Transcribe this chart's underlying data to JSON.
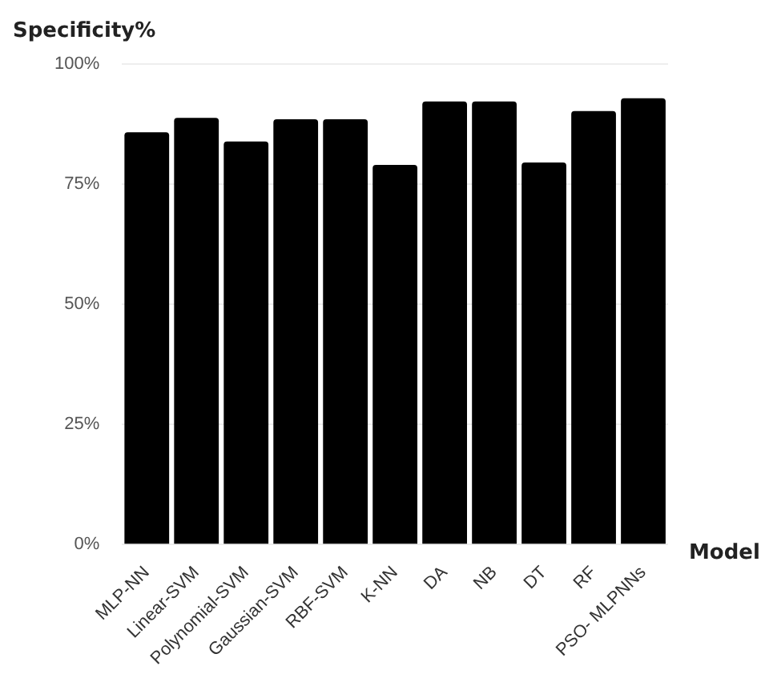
{
  "chart_data": {
    "type": "bar",
    "xlabel": "Model",
    "ylabel": "Specificity%",
    "categories": [
      "MLP-NN",
      "Linear-SVM",
      "Polynomial-SVM",
      "Gaussian-SVM",
      "RBF-SVM",
      "K-NN",
      "DA",
      "NB",
      "DT",
      "RF",
      "PSO- MLPNNs"
    ],
    "values": [
      85.8,
      88.8,
      83.9,
      88.5,
      88.5,
      79.0,
      92.2,
      92.2,
      79.5,
      90.2,
      92.9
    ],
    "color": "#000000",
    "ylim": [
      0,
      100
    ],
    "yticks": [
      {
        "value": 0,
        "label": "0%"
      },
      {
        "value": 25,
        "label": "25%"
      },
      {
        "value": 50,
        "label": "50%"
      },
      {
        "value": 75,
        "label": "75%"
      },
      {
        "value": 100,
        "label": "100%"
      }
    ],
    "grid": "y",
    "legend": false
  }
}
